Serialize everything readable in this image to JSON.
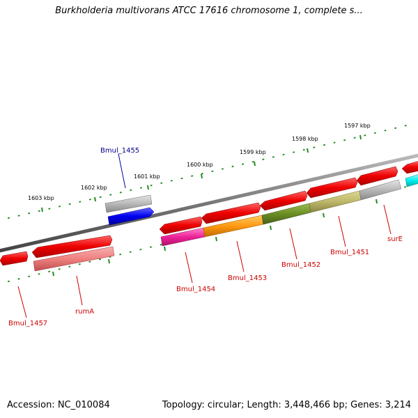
{
  "header": {
    "title": "Burkholderia multivorans ATCC 17616 chromosome 1, complete s..."
  },
  "footer": {
    "accession": "Accession: NC_010084",
    "topology": "Topology: circular; Length: 3,448,466 bp; Genes: 3,214"
  },
  "scale": {
    "labels": [
      "1597 kbp",
      "1598 kbp",
      "1599 kbp",
      "1600 kbp",
      "1601 kbp",
      "1602 kbp",
      "1603 kbp"
    ]
  },
  "genes": {
    "labels": [
      "Bmul_1455",
      "Bmul_1457",
      "rumA",
      "Bmul_1454",
      "Bmul_1453",
      "Bmul_1452",
      "Bmul_1451",
      "surE"
    ]
  },
  "colors": {
    "cds": "#ff0000",
    "backbone": "#777777",
    "tick": "#228b22",
    "label_red": "#cc0000",
    "label_blue": "#00008b"
  }
}
